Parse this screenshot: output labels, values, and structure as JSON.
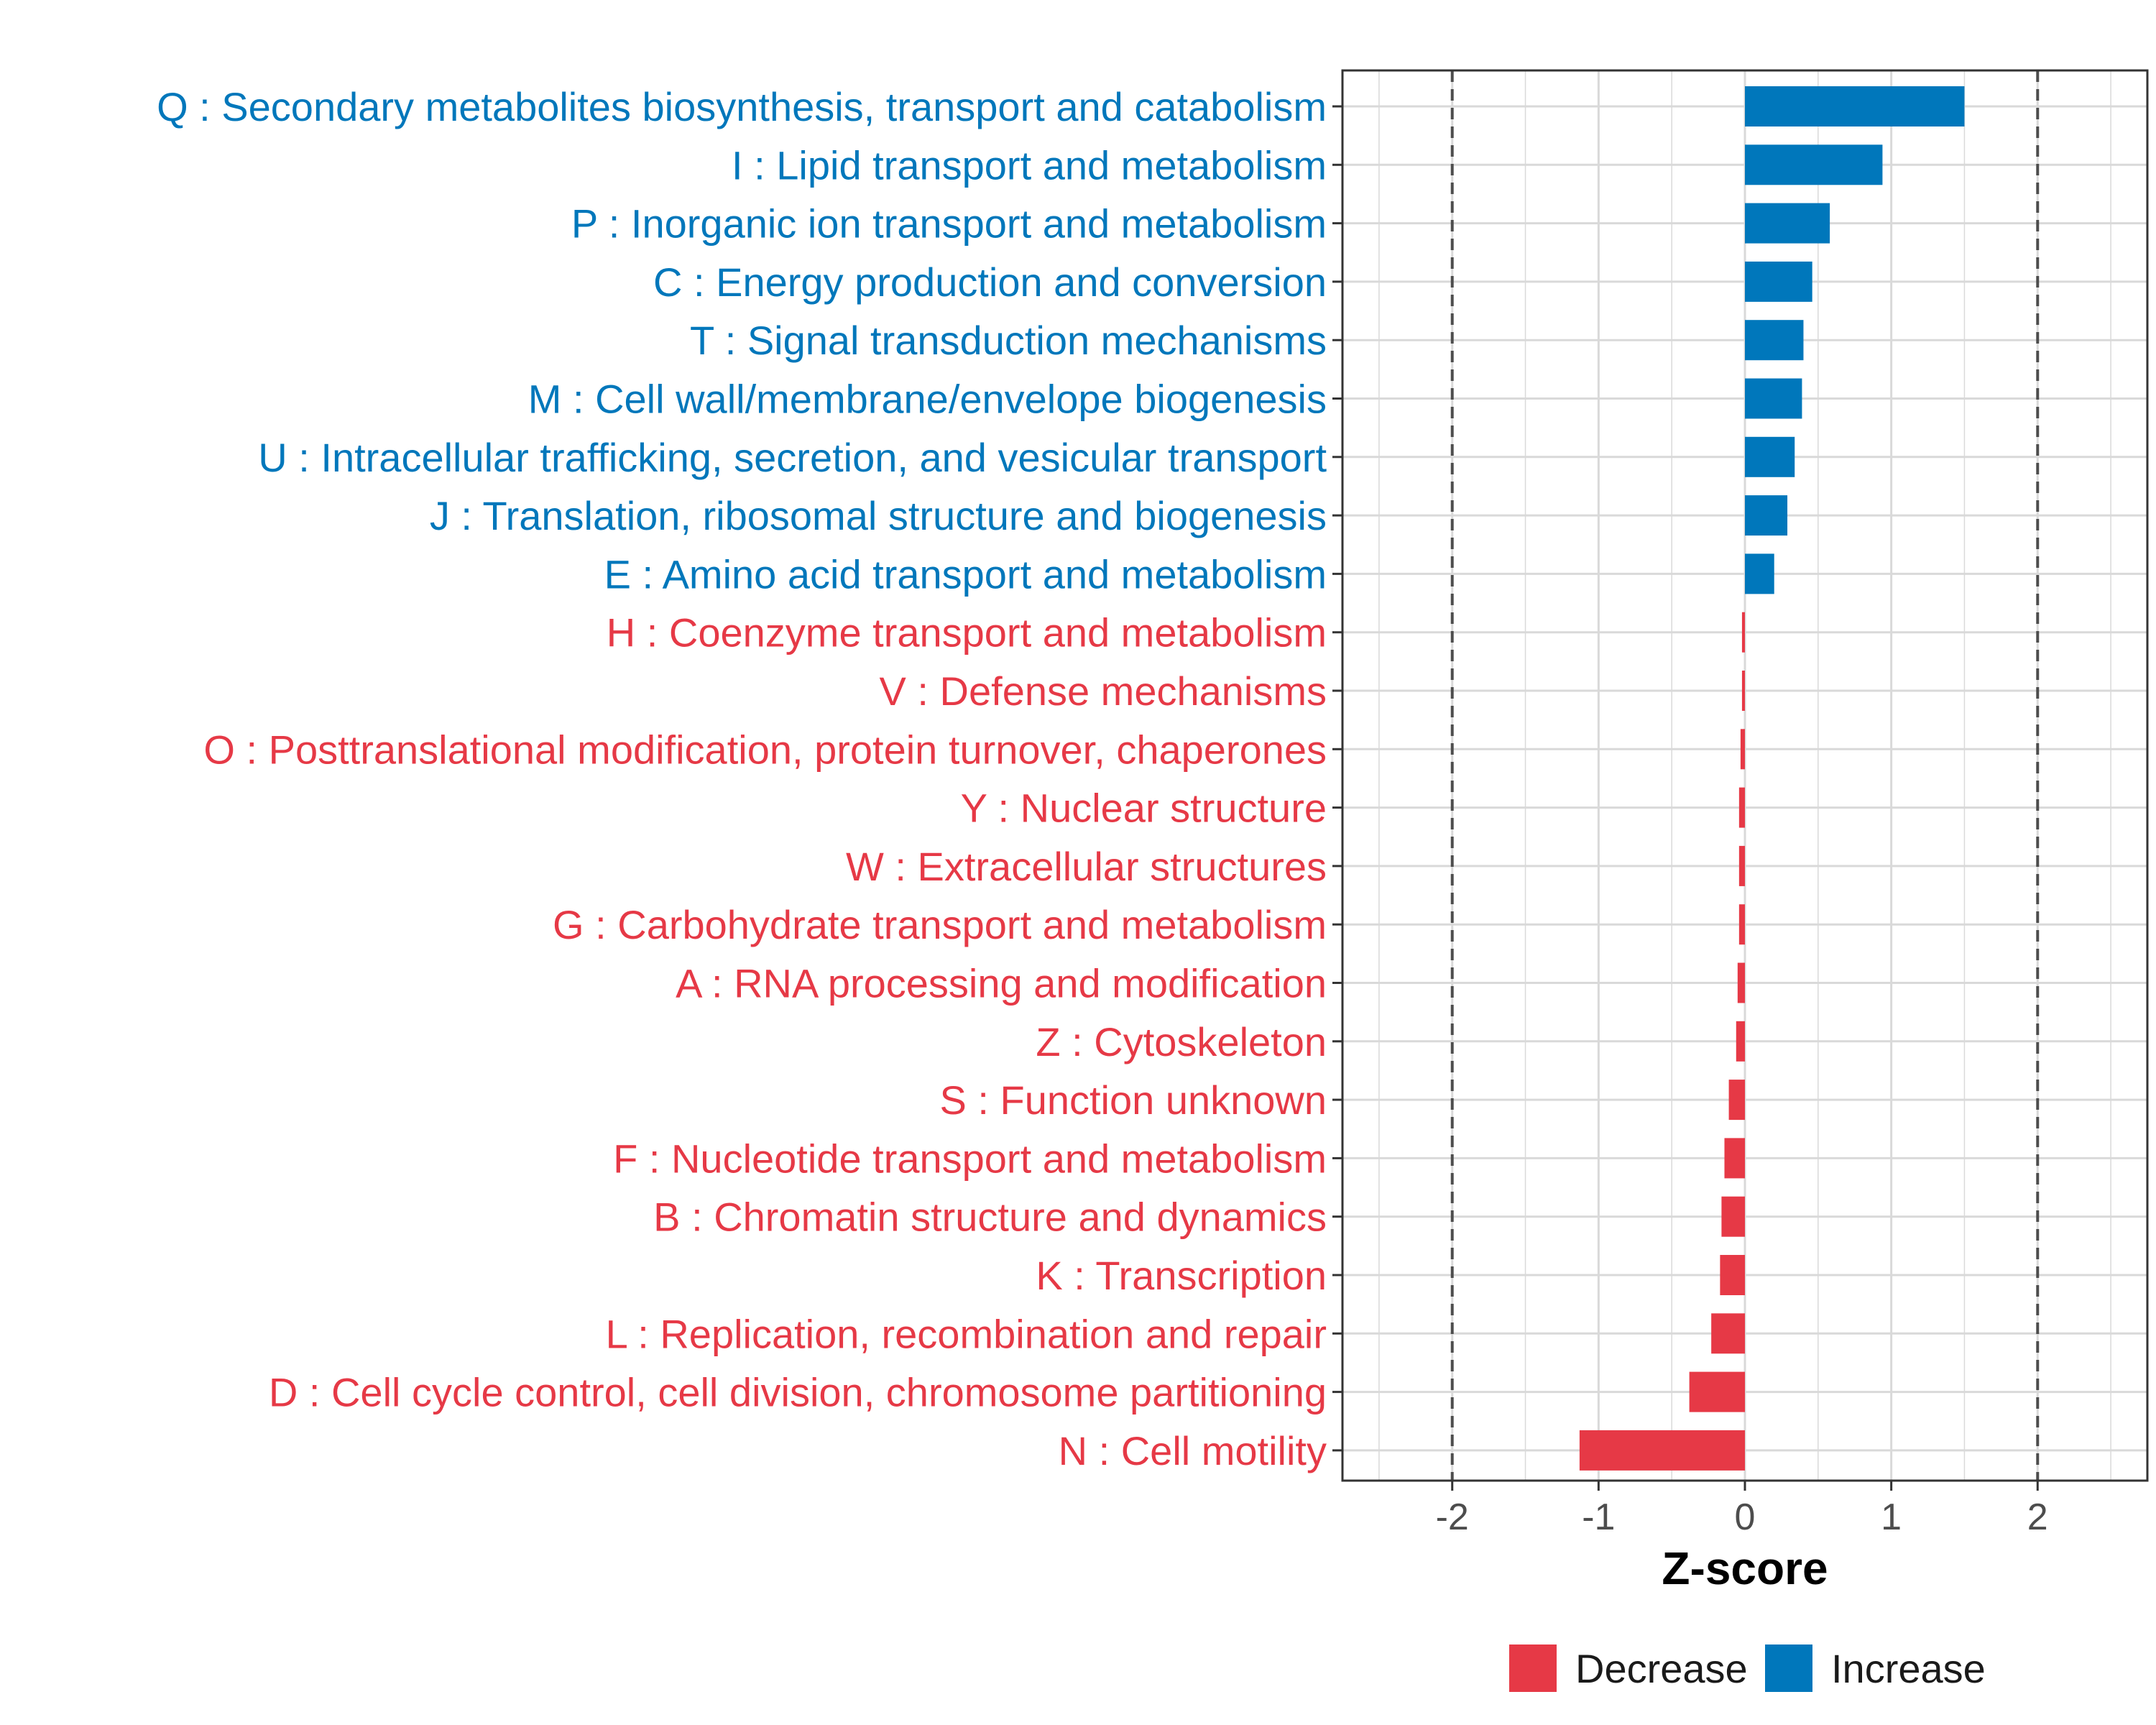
{
  "colors": {
    "increase": "#0077BB",
    "decrease": "#E63946",
    "grid": "#D9D9D9",
    "axis": "#333333",
    "tick_text": "#4D4D4D",
    "threshold": "#4D4D4D"
  },
  "chart_data": {
    "type": "bar",
    "orientation": "horizontal",
    "title": "",
    "xlabel": "Z-score",
    "ylabel": "",
    "xlim": [
      -2.75,
      2.75
    ],
    "xticks": [
      -2,
      -1,
      0,
      1,
      2
    ],
    "xtick_labels": [
      "-2",
      "-1",
      "0",
      "1",
      "2"
    ],
    "threshold_lines": [
      -2,
      2
    ],
    "grid": true,
    "legend_position": "bottom",
    "legend": [
      {
        "name": "Decrease",
        "color": "#E63946"
      },
      {
        "name": "Increase",
        "color": "#0077BB"
      }
    ],
    "categories": [
      "Q : Secondary metabolites biosynthesis, transport and catabolism",
      "I : Lipid transport and metabolism",
      "P : Inorganic ion transport and metabolism",
      "C : Energy production and conversion",
      "T : Signal transduction mechanisms",
      "M : Cell wall/membrane/envelope biogenesis",
      "U : Intracellular trafficking, secretion, and vesicular transport",
      "J : Translation, ribosomal structure and biogenesis",
      "E : Amino acid transport and metabolism",
      "H : Coenzyme transport and metabolism",
      "V : Defense mechanisms",
      "O : Posttranslational modification, protein turnover, chaperones",
      "Y : Nuclear structure",
      "W : Extracellular structures",
      "G : Carbohydrate transport and metabolism",
      "A : RNA processing and modification",
      "Z : Cytoskeleton",
      "S : Function unknown",
      "F : Nucleotide transport and metabolism",
      "B : Chromatin structure and dynamics",
      "K : Transcription",
      "L : Replication, recombination and repair",
      "D : Cell cycle control, cell division, chromosome partitioning",
      "N : Cell motility"
    ],
    "values": [
      1.5,
      0.94,
      0.58,
      0.46,
      0.4,
      0.39,
      0.34,
      0.29,
      0.2,
      -0.02,
      -0.02,
      -0.03,
      -0.04,
      -0.04,
      -0.04,
      -0.05,
      -0.06,
      -0.11,
      -0.14,
      -0.16,
      -0.17,
      -0.23,
      -0.38,
      -1.13
    ],
    "groups": [
      "Increase",
      "Increase",
      "Increase",
      "Increase",
      "Increase",
      "Increase",
      "Increase",
      "Increase",
      "Increase",
      "Decrease",
      "Decrease",
      "Decrease",
      "Decrease",
      "Decrease",
      "Decrease",
      "Decrease",
      "Decrease",
      "Decrease",
      "Decrease",
      "Decrease",
      "Decrease",
      "Decrease",
      "Decrease",
      "Decrease"
    ]
  }
}
